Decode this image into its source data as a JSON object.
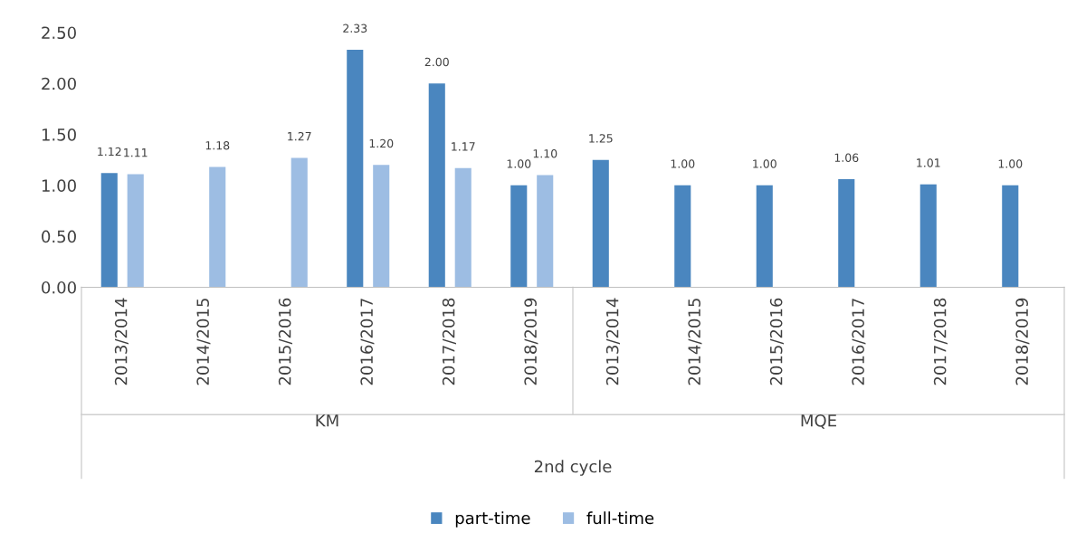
{
  "chart_data": {
    "type": "bar",
    "categories": [
      "2013/2014",
      "2014/2015",
      "2015/2016",
      "2016/2017",
      "2017/2018",
      "2018/2019",
      "2013/2014",
      "2014/2015",
      "2015/2016",
      "2016/2017",
      "2017/2018",
      "2018/2019"
    ],
    "series": [
      {
        "name": "part-time",
        "color": "#4a86bf",
        "values": [
          1.12,
          null,
          null,
          2.33,
          2.0,
          1.0,
          1.25,
          1.0,
          1.0,
          1.06,
          1.01,
          1.0
        ],
        "value_labels": [
          "1.12",
          null,
          null,
          "2.33",
          "2.00",
          "1.00",
          "1.25",
          "1.00",
          "1.00",
          "1.06",
          "1.01",
          "1.00"
        ]
      },
      {
        "name": "full-time",
        "color": "#9dbde3",
        "values": [
          1.11,
          1.18,
          1.27,
          1.2,
          1.17,
          1.1,
          null,
          null,
          null,
          null,
          null,
          null
        ],
        "value_labels": [
          "1.11",
          "1.18",
          "1.27",
          "1.20",
          "1.17",
          "1.10",
          null,
          null,
          null,
          null,
          null,
          null
        ]
      }
    ],
    "ylim": [
      0,
      2.5
    ],
    "yticks": [
      {
        "value": 0,
        "label": "0.00"
      },
      {
        "value": 0.5,
        "label": "0.50"
      },
      {
        "value": 1,
        "label": "1.00"
      },
      {
        "value": 1.5,
        "label": "1.50"
      },
      {
        "value": 2,
        "label": "2.00"
      },
      {
        "value": 2.5,
        "label": "2.50"
      }
    ],
    "annotations": [
      "KM",
      "MQE",
      "2nd cycle"
    ],
    "grid": false,
    "legend": "bottom"
  }
}
